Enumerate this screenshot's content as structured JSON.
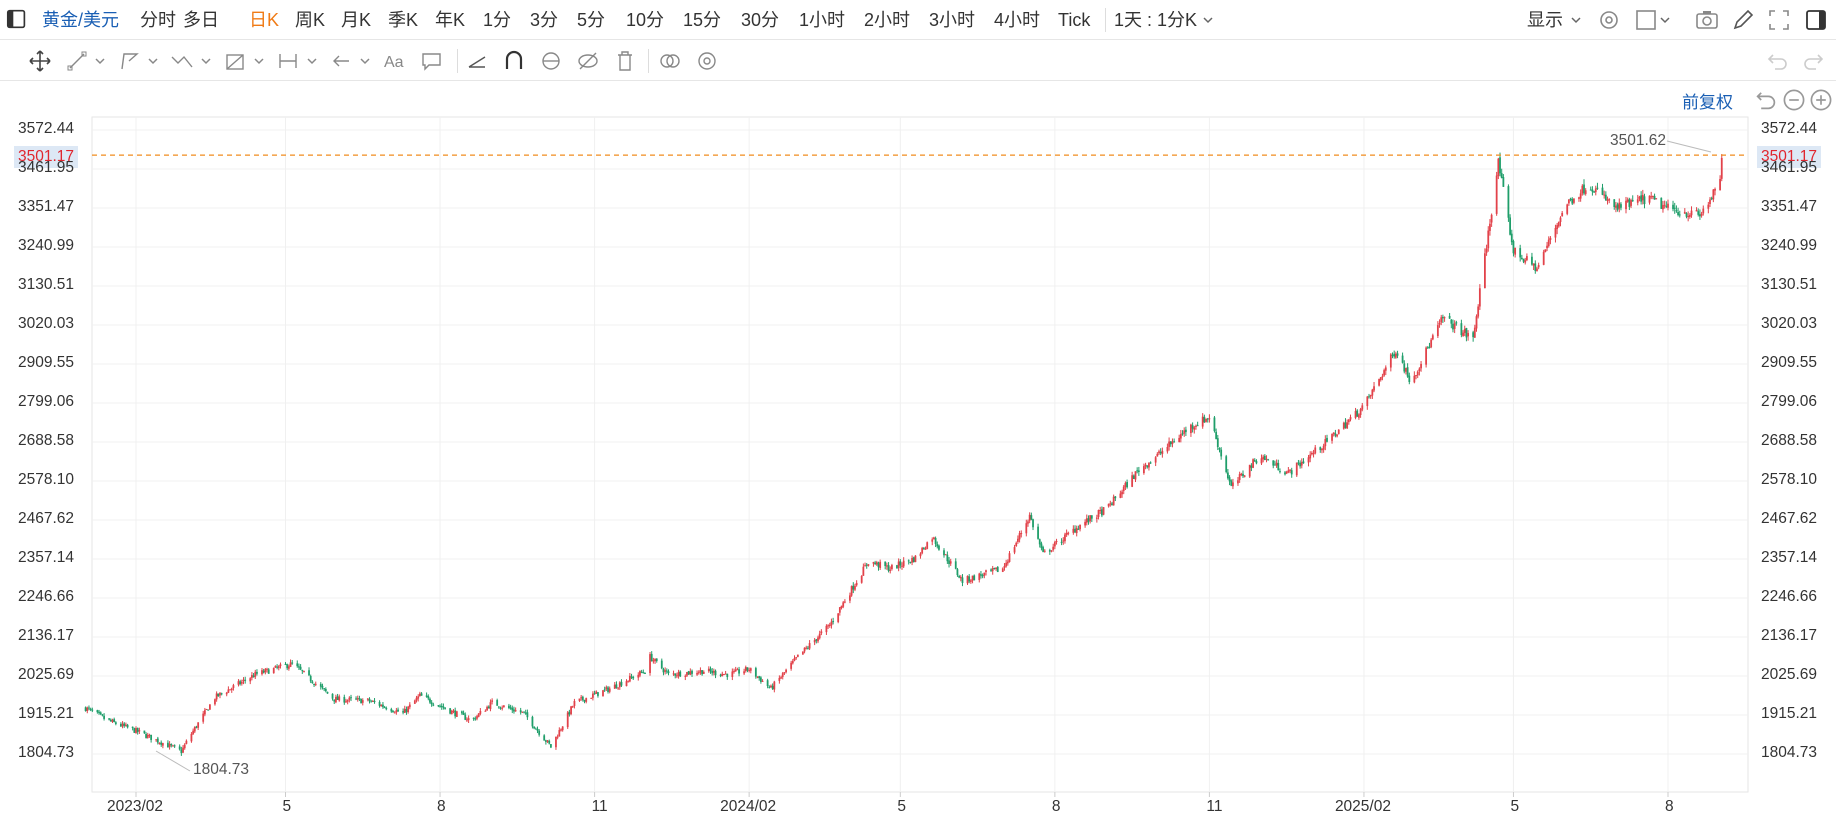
{
  "topbar": {
    "symbol": "黄金/美元",
    "periods": [
      "分时",
      "多日",
      "日K",
      "周K",
      "月K",
      "季K",
      "年K",
      "1分",
      "3分",
      "5分",
      "10分",
      "15分",
      "30分",
      "1小时",
      "2小时",
      "3小时",
      "4小时",
      "Tick"
    ],
    "active_period": "日K",
    "interval_select": "1天 : 1分K",
    "display_label": "显示"
  },
  "adjust_label": "前复权",
  "colors": {
    "up": "#e2424a",
    "down": "#1f9e6a",
    "last_line": "#f08c1e",
    "accent": "#1a5fb4",
    "active": "#f07b16"
  },
  "chart_data": {
    "type": "candlestick",
    "y_ticks": [
      "3572.44",
      "3461.95",
      "3351.47",
      "3240.99",
      "3130.51",
      "3020.03",
      "2909.55",
      "2799.06",
      "2688.58",
      "2578.10",
      "2467.62",
      "2357.14",
      "2246.66",
      "2136.17",
      "2025.69",
      "1915.21",
      "1804.73"
    ],
    "x_ticks": [
      "2023/02",
      "5",
      "8",
      "11",
      "2024/02",
      "5",
      "8",
      "11",
      "2025/02",
      "5",
      "8"
    ],
    "ylim": [
      1760,
      3630
    ],
    "last_price": "3501.17",
    "max_label": "3501.62",
    "min_label": "1804.73",
    "anchors": [
      [
        "2023/01/02",
        1935
      ],
      [
        "2023/01/15",
        1900
      ],
      [
        "2023/02/01",
        1870
      ],
      [
        "2023/02/15",
        1840
      ],
      [
        "2023/02/28",
        1812
      ],
      [
        "2023/03/05",
        1855
      ],
      [
        "2023/03/20",
        1965
      ],
      [
        "2023/04/13",
        2030
      ],
      [
        "2023/05/05",
        2060
      ],
      [
        "2023/05/30",
        1960
      ],
      [
        "2023/06/20",
        1955
      ],
      [
        "2023/07/10",
        1920
      ],
      [
        "2023/07/20",
        1970
      ],
      [
        "2023/08/10",
        1920
      ],
      [
        "2023/08/20",
        1900
      ],
      [
        "2023/09/01",
        1950
      ],
      [
        "2023/09/20",
        1920
      ],
      [
        "2023/10/06",
        1825
      ],
      [
        "2023/10/20",
        1950
      ],
      [
        "2023/11/10",
        1990
      ],
      [
        "2023/12/01",
        2040
      ],
      [
        "2023/12/04",
        2080
      ],
      [
        "2023/12/15",
        2030
      ],
      [
        "2024/01/05",
        2040
      ],
      [
        "2024/01/20",
        2030
      ],
      [
        "2024/02/01",
        2045
      ],
      [
        "2024/02/14",
        1990
      ],
      [
        "2024/03/01",
        2080
      ],
      [
        "2024/03/20",
        2170
      ],
      [
        "2024/04/12",
        2350
      ],
      [
        "2024/04/25",
        2330
      ],
      [
        "2024/05/10",
        2360
      ],
      [
        "2024/05/20",
        2420
      ],
      [
        "2024/06/07",
        2295
      ],
      [
        "2024/07/01",
        2330
      ],
      [
        "2024/07/17",
        2480
      ],
      [
        "2024/07/25",
        2370
      ],
      [
        "2024/08/15",
        2450
      ],
      [
        "2024/09/01",
        2500
      ],
      [
        "2024/09/20",
        2610
      ],
      [
        "2024/10/01",
        2650
      ],
      [
        "2024/10/20",
        2730
      ],
      [
        "2024/11/01",
        2760
      ],
      [
        "2024/11/14",
        2560
      ],
      [
        "2024/12/01",
        2650
      ],
      [
        "2024/12/18",
        2600
      ],
      [
        "2025/01/10",
        2690
      ],
      [
        "2025/02/01",
        2790
      ],
      [
        "2025/02/20",
        2950
      ],
      [
        "2025/03/01",
        2860
      ],
      [
        "2025/03/20",
        3040
      ],
      [
        "2025/04/07",
        2980
      ],
      [
        "2025/04/22",
        3480
      ],
      [
        "2025/05/01",
        3230
      ],
      [
        "2025/05/15",
        3180
      ],
      [
        "2025/06/01",
        3360
      ],
      [
        "2025/06/15",
        3420
      ],
      [
        "2025/07/01",
        3350
      ],
      [
        "2025/07/20",
        3380
      ],
      [
        "2025/08/01",
        3350
      ],
      [
        "2025/08/20",
        3330
      ],
      [
        "2025/09/01",
        3420
      ],
      [
        "2025/09/02",
        3500
      ]
    ]
  }
}
